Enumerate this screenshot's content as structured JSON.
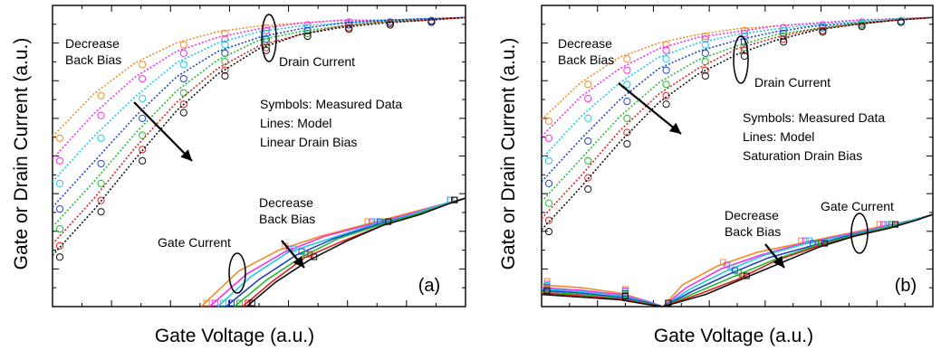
{
  "figure": {
    "ylabel": "Gate or Drain Current (a.u.)",
    "xlabel": "Gate Voltage (a.u.)"
  },
  "chart_data": [
    {
      "type": "line",
      "panel_label": "(a)",
      "title": "",
      "xlabel": "Gate Voltage (a.u.)",
      "ylabel": "Gate or Drain Current (a.u.)",
      "xlim": [
        0,
        1
      ],
      "ylim": [
        0,
        1
      ],
      "log_scale_y": true,
      "grid": false,
      "legend": "none",
      "note": "Symbols: Measured Data",
      "annotations": {
        "drain_current": "Drain Current",
        "gate_current": "Gate Current",
        "decrease_back_bias_top": "Decrease\nBack Bias",
        "decrease_back_bias_bottom": "Decrease\nBack Bias",
        "legend_lines": [
          "Symbols: Measured Data",
          "Lines: Model",
          "Linear Drain Bias"
        ]
      },
      "series_colors": [
        "#f28c28",
        "#ee33ee",
        "#22c8e8",
        "#2244cc",
        "#22bb33",
        "#dd2222",
        "#111111"
      ],
      "drain_series": [
        {
          "color": "#f28c28",
          "x": [
            0.0,
            0.1,
            0.2,
            0.3,
            0.4,
            0.5,
            0.6,
            0.7,
            0.8,
            0.9,
            1.0
          ],
          "y": [
            0.58,
            0.73,
            0.84,
            0.91,
            0.95,
            0.97,
            0.98,
            0.99,
            0.99,
            0.995,
            1.0
          ]
        },
        {
          "color": "#ee33ee",
          "x": [
            0.0,
            0.1,
            0.2,
            0.3,
            0.4,
            0.5,
            0.6,
            0.7,
            0.8,
            0.9,
            1.0
          ],
          "y": [
            0.5,
            0.66,
            0.79,
            0.88,
            0.93,
            0.96,
            0.98,
            0.99,
            0.99,
            0.995,
            1.0
          ]
        },
        {
          "color": "#22c8e8",
          "x": [
            0.0,
            0.1,
            0.2,
            0.3,
            0.4,
            0.5,
            0.6,
            0.7,
            0.8,
            0.9,
            1.0
          ],
          "y": [
            0.42,
            0.58,
            0.72,
            0.84,
            0.91,
            0.95,
            0.97,
            0.98,
            0.99,
            0.995,
            1.0
          ]
        },
        {
          "color": "#2244cc",
          "x": [
            0.0,
            0.1,
            0.2,
            0.3,
            0.4,
            0.5,
            0.6,
            0.7,
            0.8,
            0.9,
            1.0
          ],
          "y": [
            0.33,
            0.49,
            0.65,
            0.79,
            0.88,
            0.93,
            0.96,
            0.98,
            0.99,
            0.995,
            1.0
          ]
        },
        {
          "color": "#22bb33",
          "x": [
            0.0,
            0.1,
            0.2,
            0.3,
            0.4,
            0.5,
            0.6,
            0.7,
            0.8,
            0.9,
            1.0
          ],
          "y": [
            0.26,
            0.42,
            0.59,
            0.74,
            0.85,
            0.92,
            0.95,
            0.97,
            0.985,
            0.99,
            1.0
          ]
        },
        {
          "color": "#dd2222",
          "x": [
            0.0,
            0.1,
            0.2,
            0.3,
            0.4,
            0.5,
            0.6,
            0.7,
            0.8,
            0.9,
            1.0
          ],
          "y": [
            0.2,
            0.36,
            0.54,
            0.7,
            0.82,
            0.9,
            0.94,
            0.97,
            0.985,
            0.99,
            1.0
          ]
        },
        {
          "color": "#111111",
          "x": [
            0.0,
            0.1,
            0.2,
            0.3,
            0.4,
            0.5,
            0.6,
            0.7,
            0.8,
            0.9,
            1.0
          ],
          "y": [
            0.16,
            0.32,
            0.5,
            0.67,
            0.8,
            0.89,
            0.94,
            0.965,
            0.98,
            0.99,
            1.0
          ]
        }
      ],
      "gate_series": [
        {
          "color": "#f28c28",
          "x": [
            0.36,
            0.45,
            0.55,
            0.65,
            0.75,
            0.85,
            0.95,
            1.0
          ],
          "y": [
            0.0,
            0.13,
            0.21,
            0.26,
            0.3,
            0.34,
            0.38,
            0.4
          ]
        },
        {
          "color": "#ee33ee",
          "x": [
            0.38,
            0.47,
            0.56,
            0.66,
            0.76,
            0.86,
            0.95,
            1.0
          ],
          "y": [
            0.0,
            0.12,
            0.2,
            0.26,
            0.3,
            0.34,
            0.38,
            0.4
          ]
        },
        {
          "color": "#22c8e8",
          "x": [
            0.4,
            0.48,
            0.57,
            0.67,
            0.77,
            0.87,
            0.95,
            1.0
          ],
          "y": [
            0.0,
            0.11,
            0.2,
            0.25,
            0.3,
            0.34,
            0.38,
            0.4
          ]
        },
        {
          "color": "#2244cc",
          "x": [
            0.42,
            0.5,
            0.59,
            0.68,
            0.78,
            0.88,
            0.96,
            1.0
          ],
          "y": [
            0.0,
            0.1,
            0.19,
            0.25,
            0.3,
            0.34,
            0.38,
            0.4
          ]
        },
        {
          "color": "#22bb33",
          "x": [
            0.44,
            0.52,
            0.6,
            0.69,
            0.79,
            0.88,
            0.96,
            1.0
          ],
          "y": [
            0.0,
            0.1,
            0.18,
            0.25,
            0.3,
            0.34,
            0.38,
            0.4
          ]
        },
        {
          "color": "#dd2222",
          "x": [
            0.46,
            0.53,
            0.61,
            0.7,
            0.8,
            0.89,
            0.96,
            1.0
          ],
          "y": [
            0.0,
            0.09,
            0.18,
            0.24,
            0.3,
            0.34,
            0.38,
            0.4
          ]
        },
        {
          "color": "#111111",
          "x": [
            0.47,
            0.54,
            0.62,
            0.71,
            0.8,
            0.89,
            0.96,
            1.0
          ],
          "y": [
            0.0,
            0.09,
            0.17,
            0.24,
            0.3,
            0.34,
            0.38,
            0.4
          ]
        }
      ]
    },
    {
      "type": "line",
      "panel_label": "(b)",
      "title": "",
      "xlabel": "Gate Voltage (a.u.)",
      "ylabel": "Gate or Drain Current (a.u.)",
      "xlim": [
        0,
        1
      ],
      "ylim": [
        0,
        1
      ],
      "log_scale_y": true,
      "grid": false,
      "legend": "none",
      "annotations": {
        "drain_current": "Drain Current",
        "gate_current": "Gate Current",
        "decrease_back_bias_top": "Decrease\nBack Bias",
        "decrease_back_bias_bottom": "Decrease\nBack Bias",
        "legend_lines": [
          "Symbols: Measured Data",
          "Lines: Model",
          "Saturation Drain Bias"
        ]
      },
      "series_colors": [
        "#f28c28",
        "#ee33ee",
        "#22c8e8",
        "#2244cc",
        "#22bb33",
        "#dd2222",
        "#111111"
      ],
      "drain_series": [
        {
          "color": "#f28c28",
          "x": [
            0.0,
            0.1,
            0.2,
            0.3,
            0.4,
            0.5,
            0.6,
            0.7,
            0.8,
            0.9,
            1.0
          ],
          "y": [
            0.64,
            0.77,
            0.86,
            0.91,
            0.94,
            0.96,
            0.97,
            0.98,
            0.99,
            0.995,
            1.0
          ]
        },
        {
          "color": "#ee33ee",
          "x": [
            0.0,
            0.1,
            0.2,
            0.3,
            0.4,
            0.5,
            0.6,
            0.7,
            0.8,
            0.9,
            1.0
          ],
          "y": [
            0.58,
            0.72,
            0.82,
            0.89,
            0.93,
            0.95,
            0.97,
            0.98,
            0.99,
            0.995,
            1.0
          ]
        },
        {
          "color": "#22c8e8",
          "x": [
            0.0,
            0.1,
            0.2,
            0.3,
            0.4,
            0.5,
            0.6,
            0.7,
            0.8,
            0.9,
            1.0
          ],
          "y": [
            0.5,
            0.65,
            0.77,
            0.86,
            0.91,
            0.94,
            0.96,
            0.975,
            0.985,
            0.995,
            1.0
          ]
        },
        {
          "color": "#2244cc",
          "x": [
            0.0,
            0.1,
            0.2,
            0.3,
            0.4,
            0.5,
            0.6,
            0.7,
            0.8,
            0.9,
            1.0
          ],
          "y": [
            0.42,
            0.57,
            0.71,
            0.82,
            0.88,
            0.92,
            0.95,
            0.97,
            0.98,
            0.99,
            1.0
          ]
        },
        {
          "color": "#22bb33",
          "x": [
            0.0,
            0.1,
            0.2,
            0.3,
            0.4,
            0.5,
            0.6,
            0.7,
            0.8,
            0.9,
            1.0
          ],
          "y": [
            0.35,
            0.5,
            0.65,
            0.77,
            0.85,
            0.9,
            0.94,
            0.96,
            0.98,
            0.99,
            1.0
          ]
        },
        {
          "color": "#dd2222",
          "x": [
            0.0,
            0.1,
            0.2,
            0.3,
            0.4,
            0.5,
            0.6,
            0.7,
            0.8,
            0.9,
            1.0
          ],
          "y": [
            0.29,
            0.44,
            0.6,
            0.73,
            0.82,
            0.89,
            0.93,
            0.96,
            0.975,
            0.99,
            1.0
          ]
        },
        {
          "color": "#111111",
          "x": [
            0.0,
            0.1,
            0.2,
            0.3,
            0.4,
            0.5,
            0.6,
            0.7,
            0.8,
            0.9,
            1.0
          ],
          "y": [
            0.25,
            0.4,
            0.56,
            0.7,
            0.8,
            0.87,
            0.92,
            0.955,
            0.975,
            0.99,
            1.0
          ]
        }
      ],
      "gate_series": [
        {
          "color": "#f28c28",
          "x": [
            0.0,
            0.1,
            0.2,
            0.27,
            0.31,
            0.36,
            0.45,
            0.55,
            0.65,
            0.75,
            0.85,
            0.95,
            1.0
          ],
          "y": [
            0.08,
            0.07,
            0.05,
            0.02,
            0.0,
            0.08,
            0.15,
            0.2,
            0.23,
            0.26,
            0.29,
            0.32,
            0.34
          ]
        },
        {
          "color": "#ee33ee",
          "x": [
            0.0,
            0.1,
            0.2,
            0.27,
            0.31,
            0.37,
            0.46,
            0.56,
            0.66,
            0.76,
            0.86,
            0.95,
            1.0
          ],
          "y": [
            0.07,
            0.06,
            0.045,
            0.02,
            0.0,
            0.07,
            0.14,
            0.19,
            0.23,
            0.26,
            0.29,
            0.32,
            0.34
          ]
        },
        {
          "color": "#22c8e8",
          "x": [
            0.0,
            0.1,
            0.2,
            0.27,
            0.31,
            0.38,
            0.47,
            0.57,
            0.67,
            0.77,
            0.87,
            0.95,
            1.0
          ],
          "y": [
            0.065,
            0.055,
            0.04,
            0.018,
            0.0,
            0.065,
            0.13,
            0.19,
            0.23,
            0.26,
            0.29,
            0.32,
            0.34
          ]
        },
        {
          "color": "#2244cc",
          "x": [
            0.0,
            0.1,
            0.2,
            0.27,
            0.31,
            0.39,
            0.48,
            0.58,
            0.68,
            0.78,
            0.88,
            0.96,
            1.0
          ],
          "y": [
            0.06,
            0.05,
            0.035,
            0.015,
            0.0,
            0.06,
            0.12,
            0.18,
            0.22,
            0.26,
            0.29,
            0.32,
            0.34
          ]
        },
        {
          "color": "#22bb33",
          "x": [
            0.0,
            0.1,
            0.2,
            0.27,
            0.31,
            0.4,
            0.49,
            0.59,
            0.69,
            0.79,
            0.88,
            0.96,
            1.0
          ],
          "y": [
            0.055,
            0.045,
            0.03,
            0.012,
            0.0,
            0.055,
            0.11,
            0.17,
            0.22,
            0.26,
            0.29,
            0.32,
            0.34
          ]
        },
        {
          "color": "#dd2222",
          "x": [
            0.0,
            0.1,
            0.2,
            0.27,
            0.31,
            0.41,
            0.5,
            0.6,
            0.7,
            0.8,
            0.89,
            0.96,
            1.0
          ],
          "y": [
            0.05,
            0.04,
            0.028,
            0.01,
            0.0,
            0.05,
            0.1,
            0.17,
            0.22,
            0.26,
            0.29,
            0.32,
            0.34
          ]
        },
        {
          "color": "#111111",
          "x": [
            0.0,
            0.1,
            0.2,
            0.27,
            0.31,
            0.42,
            0.51,
            0.61,
            0.71,
            0.8,
            0.89,
            0.96,
            1.0
          ],
          "y": [
            0.045,
            0.035,
            0.025,
            0.008,
            0.0,
            0.045,
            0.1,
            0.16,
            0.22,
            0.26,
            0.29,
            0.32,
            0.34
          ]
        }
      ]
    }
  ]
}
